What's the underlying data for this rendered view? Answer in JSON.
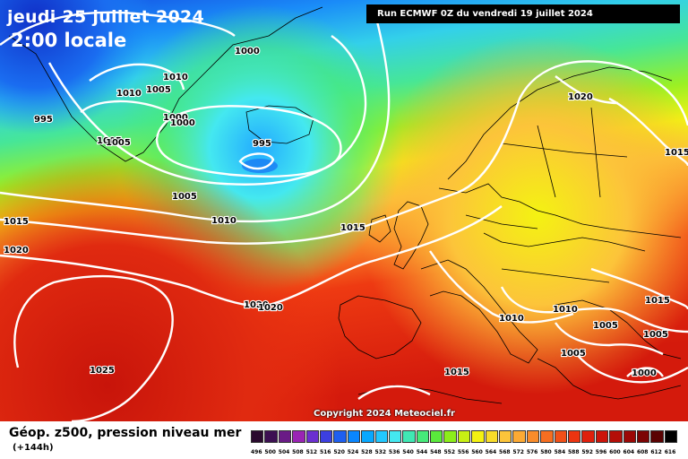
{
  "title": {
    "date": "jeudi 25 juillet 2024",
    "time": "2:00 locale"
  },
  "run_banner": "Run ECMWF 0Z du vendredi 19 juillet 2024",
  "copyright": "Copyright 2024 Meteociel.fr",
  "footer": {
    "title": "Géop. z500, pression niveau mer",
    "subtitle": "(+144h)"
  },
  "isobar_labels": [
    "1000",
    "1010",
    "1005",
    "1010",
    "995",
    "1005",
    "1000",
    "1000",
    "1005",
    "995",
    "1005",
    "1010",
    "1015",
    "1020",
    "1015",
    "1020",
    "1015",
    "1020",
    "1025",
    "1020",
    "1015",
    "1010",
    "1010",
    "1005",
    "1005",
    "1005",
    "1000",
    "1015"
  ],
  "colorscale": {
    "ticks": [
      "496",
      "500",
      "504",
      "508",
      "512",
      "516",
      "520",
      "524",
      "528",
      "532",
      "536",
      "540",
      "544",
      "548",
      "552",
      "556",
      "560",
      "564",
      "568",
      "572",
      "576",
      "580",
      "584",
      "588",
      "592",
      "596",
      "600",
      "604",
      "608",
      "612",
      "616"
    ],
    "colors": [
      "#2a0a2e",
      "#3d1052",
      "#6a1b86",
      "#9a24b4",
      "#6b2fd0",
      "#3c3fe0",
      "#1e5ff0",
      "#0a86ff",
      "#08a8ff",
      "#22c8ff",
      "#44e8f0",
      "#40e8b4",
      "#46ea7a",
      "#5aea3c",
      "#8cee1a",
      "#c8f014",
      "#f4f212",
      "#f8dc2a",
      "#fcc43a",
      "#fcaa34",
      "#f98c2a",
      "#f66e20",
      "#f25018",
      "#ec3410",
      "#e0200c",
      "#cc140a",
      "#b40e08",
      "#9c0806",
      "#7c0404",
      "#5a0202",
      "#000000"
    ]
  }
}
